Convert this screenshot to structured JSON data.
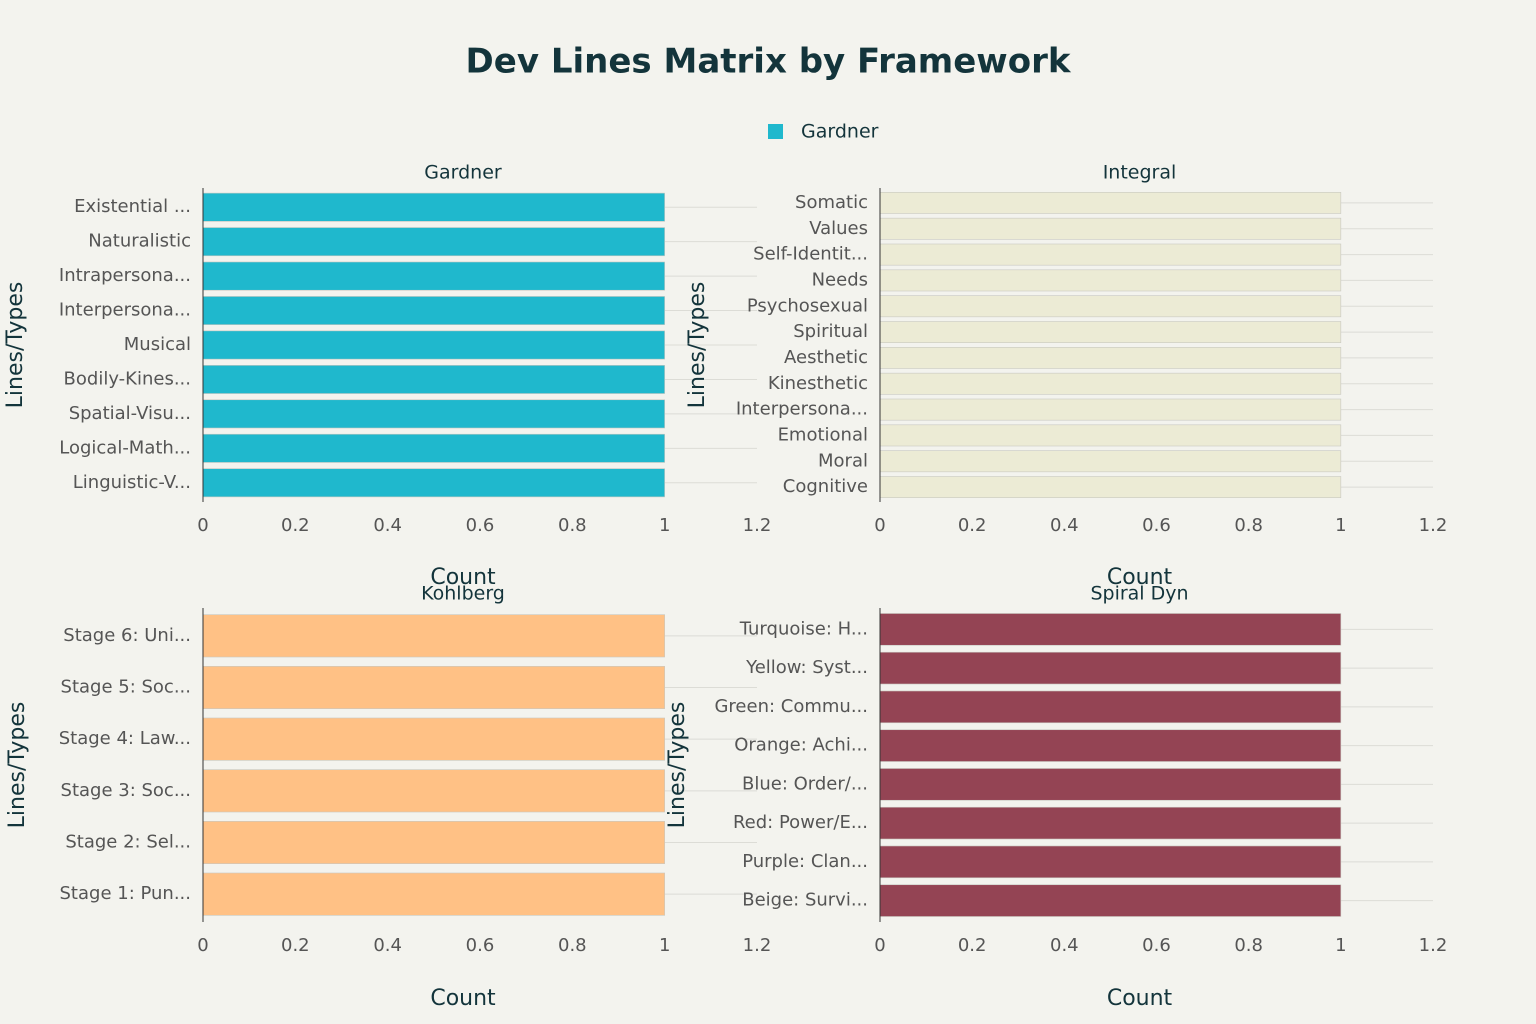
{
  "title": "Dev Lines Matrix by Framework",
  "chart_data": [
    {
      "type": "bar",
      "orientation": "horizontal",
      "title": "Gardner",
      "legend": true,
      "categories": [
        "Linguistic-V...",
        "Logical-Math...",
        "Spatial-Visu...",
        "Bodily-Kines...",
        "Musical",
        "Interpersona...",
        "Intrapersona...",
        "Naturalistic",
        "Existential ..."
      ],
      "series": [
        {
          "name": "Gardner",
          "color": "#1fb8cd",
          "values": [
            1,
            1,
            1,
            1,
            1,
            1,
            1,
            1,
            1
          ]
        }
      ],
      "xlim": [
        0,
        1.2
      ],
      "xticks": [
        0,
        0.2,
        0.4,
        0.6,
        0.8,
        1,
        1.2
      ],
      "xlabel": "Count",
      "ylabel": "Lines/Types"
    },
    {
      "type": "bar",
      "orientation": "horizontal",
      "title": "Integral",
      "legend": false,
      "categories": [
        "Cognitive",
        "Moral",
        "Emotional",
        "Interpersona...",
        "Kinesthetic",
        "Aesthetic",
        "Spiritual",
        "Psychosexual",
        "Needs",
        "Self-Identit...",
        "Values",
        "Somatic"
      ],
      "series": [
        {
          "name": "Integral",
          "color": "#ecebd5",
          "values": [
            1,
            1,
            1,
            1,
            1,
            1,
            1,
            1,
            1,
            1,
            1,
            1
          ]
        }
      ],
      "xlim": [
        0,
        1.2
      ],
      "xticks": [
        0,
        0.2,
        0.4,
        0.6,
        0.8,
        1,
        1.2
      ],
      "xlabel": "Count",
      "ylabel": "Lines/Types"
    },
    {
      "type": "bar",
      "orientation": "horizontal",
      "title": "Kohlberg",
      "legend": false,
      "categories": [
        "Stage 1: Pun...",
        "Stage 2: Sel...",
        "Stage 3: Soc...",
        "Stage 4: Law...",
        "Stage 5: Soc...",
        "Stage 6: Uni..."
      ],
      "series": [
        {
          "name": "Kohlberg",
          "color": "#ffc185",
          "values": [
            1,
            1,
            1,
            1,
            1,
            1
          ]
        }
      ],
      "xlim": [
        0,
        1.2
      ],
      "xticks": [
        0,
        0.2,
        0.4,
        0.6,
        0.8,
        1,
        1.2
      ],
      "xlabel": "Count",
      "ylabel": "Lines/Types"
    },
    {
      "type": "bar",
      "orientation": "horizontal",
      "title": "Spiral Dyn",
      "legend": false,
      "categories": [
        "Beige: Survi...",
        "Purple: Clan...",
        "Red: Power/E...",
        "Blue: Order/...",
        "Orange: Achi...",
        "Green: Commu...",
        "Yellow: Syst...",
        "Turquoise: H..."
      ],
      "series": [
        {
          "name": "Spiral Dyn",
          "color": "#944454",
          "values": [
            1,
            1,
            1,
            1,
            1,
            1,
            1,
            1
          ]
        }
      ],
      "xlim": [
        0,
        1.2
      ],
      "xticks": [
        0,
        0.2,
        0.4,
        0.6,
        0.8,
        1,
        1.2
      ],
      "xlabel": "Count",
      "ylabel": "Lines/Types"
    }
  ]
}
